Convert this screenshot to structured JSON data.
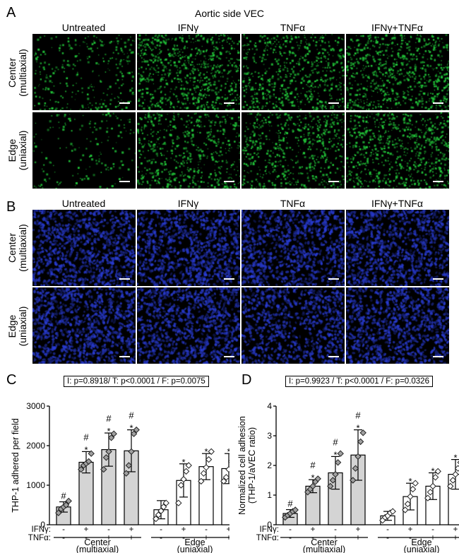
{
  "panels": {
    "A": {
      "letter": "A",
      "title": "Aortic side VEC",
      "stain_color": "#22c83a",
      "columns": [
        "Untreated",
        "IFNγ",
        "TNFα",
        "IFNγ+TNFα"
      ],
      "rows": [
        [
          "Center",
          "(multiaxial)"
        ],
        [
          "Edge",
          "(uniaxial)"
        ]
      ],
      "density": [
        [
          0.35,
          1.0,
          0.85,
          1.0
        ],
        [
          0.15,
          0.75,
          0.8,
          0.95
        ]
      ]
    },
    "B": {
      "letter": "B",
      "stain_color": "#2a3dd6",
      "columns": [
        "Untreated",
        "IFNγ",
        "TNFα",
        "IFNγ+TNFα"
      ],
      "rows": [
        [
          "Center",
          "(multiaxial)"
        ],
        [
          "Edge",
          "(uniaxial)"
        ]
      ],
      "density": [
        [
          1.0,
          1.0,
          1.0,
          1.0
        ],
        [
          1.0,
          1.0,
          0.85,
          1.0
        ]
      ]
    },
    "C": {
      "letter": "C",
      "stats": "I: p=0.8918/ T: p<0.0001 / F: p=0.0075"
    },
    "D": {
      "letter": "D",
      "stats": "I: p=0.9923 / T: p<0.0001 / F: p=0.0326"
    }
  },
  "chart_data": [
    {
      "type": "bar",
      "panel": "C",
      "ylabel": "THP-1 adhered per field",
      "ylim": [
        0,
        3000
      ],
      "yticks": [
        "0",
        "1000",
        "2000",
        "3000"
      ],
      "treatment_rows": [
        {
          "label": "IFNγ:",
          "signs": [
            "-",
            "+",
            "-",
            "+",
            "-",
            "+",
            "-",
            "+"
          ]
        },
        {
          "label": "TNFα:",
          "signs": [
            "-",
            "-",
            "+",
            "+",
            "-",
            "-",
            "+",
            "+"
          ]
        }
      ],
      "groups": [
        {
          "name": "Center",
          "sub": "(multiaxial)"
        },
        {
          "name": "Edge",
          "sub": "(uniaxial)"
        }
      ],
      "values": [
        450,
        1580,
        1900,
        1870,
        380,
        1120,
        1470,
        1420
      ],
      "errors": [
        130,
        270,
        420,
        530,
        230,
        420,
        330,
        380
      ],
      "fill": [
        "#d4d4d4",
        "#d4d4d4",
        "#d4d4d4",
        "#d4d4d4",
        "#ffffff",
        "#ffffff",
        "#ffffff",
        "#ffffff"
      ],
      "markers": [
        "diamond",
        "diamond",
        "diamond",
        "diamond",
        "diamond",
        "diamond",
        "diamond",
        "diamond"
      ],
      "annotations": [
        [
          "#"
        ],
        [
          "#",
          "*"
        ],
        [
          "#",
          "*"
        ],
        [
          "#",
          "*"
        ],
        [],
        [
          "*"
        ],
        [
          "*"
        ],
        [
          "*"
        ]
      ],
      "points": [
        [
          300,
          400,
          450,
          500,
          600
        ],
        [
          1400,
          1500,
          1550,
          1600,
          1800
        ],
        [
          1400,
          1700,
          1850,
          2200,
          2300
        ],
        [
          1300,
          1500,
          1850,
          2300,
          2400
        ],
        [
          150,
          250,
          350,
          450,
          550
        ],
        [
          550,
          1000,
          1150,
          1350,
          1500
        ],
        [
          1100,
          1300,
          1450,
          1650,
          1850
        ],
        [
          1100,
          1200,
          1400,
          1600,
          1800
        ]
      ]
    },
    {
      "type": "bar",
      "panel": "D",
      "ylabel": "Normalized cell adhesion",
      "ylabel2": "(THP-1/aVEC ratio)",
      "ylim": [
        0,
        4
      ],
      "yticks": [
        "0",
        "1",
        "2",
        "3",
        "4"
      ],
      "treatment_rows": [
        {
          "label": "IFNγ:",
          "signs": [
            "-",
            "+",
            "-",
            "+",
            "-",
            "+",
            "-",
            "+"
          ]
        },
        {
          "label": "TNFα:",
          "signs": [
            "-",
            "-",
            "+",
            "+",
            "-",
            "-",
            "+",
            "+"
          ]
        }
      ],
      "groups": [
        {
          "name": "Center",
          "sub": "(multiaxial)"
        },
        {
          "name": "Edge",
          "sub": "(uniaxial)"
        }
      ],
      "values": [
        0.38,
        1.3,
        1.75,
        2.35,
        0.3,
        0.95,
        1.3,
        1.7
      ],
      "errors": [
        0.13,
        0.22,
        0.55,
        0.85,
        0.15,
        0.45,
        0.45,
        0.5
      ],
      "fill": [
        "#d4d4d4",
        "#d4d4d4",
        "#d4d4d4",
        "#d4d4d4",
        "#ffffff",
        "#ffffff",
        "#ffffff",
        "#ffffff"
      ],
      "markers": [
        "diamond",
        "diamond",
        "diamond",
        "diamond",
        "diamond",
        "diamond",
        "diamond",
        "diamond"
      ],
      "annotations": [
        [
          "#"
        ],
        [
          "#",
          "*"
        ],
        [
          "#",
          "*"
        ],
        [
          "#",
          "*"
        ],
        [],
        [
          "*"
        ],
        [
          "*"
        ],
        [
          "*"
        ]
      ],
      "points": [
        [
          0.25,
          0.32,
          0.38,
          0.45,
          0.5
        ],
        [
          1.1,
          1.2,
          1.3,
          1.45,
          1.55
        ],
        [
          1.3,
          1.5,
          1.7,
          2.1,
          2.4
        ],
        [
          1.5,
          1.9,
          2.3,
          2.8,
          3.1
        ],
        [
          0.15,
          0.25,
          0.3,
          0.4,
          0.45
        ],
        [
          0.5,
          0.7,
          0.95,
          1.2,
          1.4
        ],
        [
          0.9,
          1.1,
          1.3,
          1.6,
          1.8
        ],
        [
          1.3,
          1.5,
          1.7,
          1.9,
          2.1
        ]
      ]
    }
  ]
}
